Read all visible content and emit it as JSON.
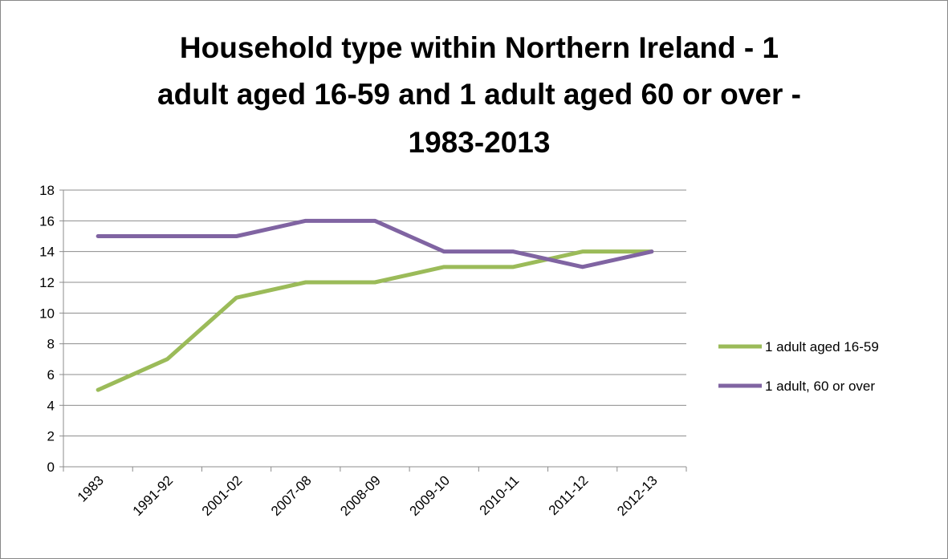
{
  "chart_data": {
    "type": "line",
    "title_lines": [
      "Household type within Northern Ireland - 1",
      "adult aged 16-59 and 1 adult aged 60 or over -",
      "1983-2013"
    ],
    "categories": [
      "1983",
      "1991-92",
      "2001-02",
      "2007-08",
      "2008-09",
      "2009-10",
      "2010-11",
      "2011-12",
      "2012-13"
    ],
    "series": [
      {
        "name": "1 adult aged 16-59",
        "color": "#9bbb59",
        "values": [
          5,
          7,
          11,
          12,
          12,
          13,
          13,
          14,
          14
        ]
      },
      {
        "name": "1 adult, 60 or over",
        "color": "#8064a2",
        "values": [
          15,
          15,
          15,
          16,
          16,
          14,
          14,
          13,
          14
        ]
      }
    ],
    "ylim": [
      0,
      18
    ],
    "ytick_step": 2,
    "grid": true,
    "legend_position": "right"
  }
}
